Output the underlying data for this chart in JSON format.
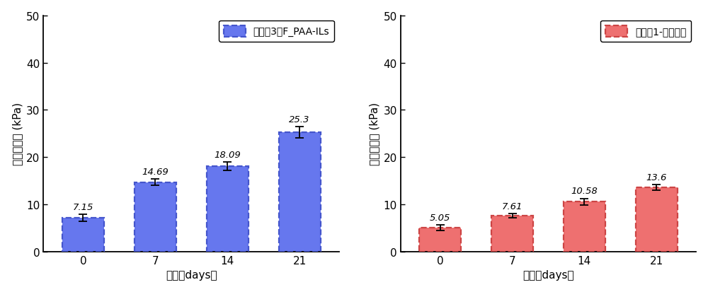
{
  "left": {
    "categories": [
      "0",
      "7",
      "14",
      "21"
    ],
    "values": [
      7.15,
      14.69,
      18.09,
      25.3
    ],
    "errors": [
      0.8,
      0.7,
      0.9,
      1.2
    ],
    "bar_color": "#6677EE",
    "bar_edge_color": "#4455CC",
    "ylabel_cn": "冰粘附强度",
    "ylabel_en": "(kPa)",
    "xlabel": "时间（days）",
    "ylim": [
      0,
      50
    ],
    "yticks": [
      0,
      10,
      20,
      30,
      40,
      50
    ],
    "legend_label_cn": "对比例3－",
    "legend_label_en": "F_PAA-ILs",
    "value_labels": [
      "7.15",
      "14.69",
      "18.09",
      "25.3"
    ]
  },
  "right": {
    "categories": [
      "0",
      "7",
      "14",
      "21"
    ],
    "values": [
      5.05,
      7.61,
      10.58,
      13.6
    ],
    "errors": [
      0.6,
      0.5,
      0.7,
      0.6
    ],
    "bar_color": "#EE7070",
    "bar_edge_color": "#CC4444",
    "ylabel_cn": "冰粘附强度",
    "ylabel_en": "(kPa)",
    "xlabel": "时间（days）",
    "ylim": [
      0,
      50
    ],
    "yticks": [
      0,
      10,
      20,
      30,
      40,
      50
    ],
    "legend_label_cn": "实施例1-凝胶涂层",
    "legend_label_en": "",
    "value_labels": [
      "5.05",
      "7.61",
      "10.58",
      "13.6"
    ]
  },
  "fig_width": 10.0,
  "fig_height": 4.14
}
